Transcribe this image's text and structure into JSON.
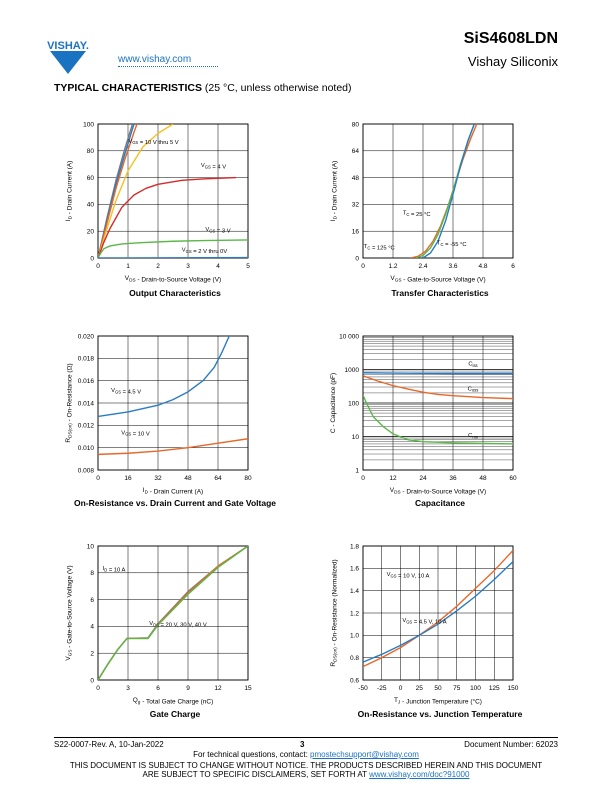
{
  "header": {
    "brand": "VISHAY.",
    "url": "www.vishay.com",
    "part_number": "SiS4608LDN",
    "company": "Vishay Siliconix",
    "section_title": "TYPICAL CHARACTERISTICS",
    "section_note": "(25 °C, unless otherwise noted)"
  },
  "footer": {
    "doc_rev": "S22-0007-Rev. A, 10-Jan-2022",
    "page": "3",
    "doc_number": "Document Number: 62023",
    "tech_q": "For technical questions, contact: ",
    "tech_email": "pmostechsupport@vishay.com",
    "disclaimer1": "THIS DOCUMENT IS SUBJECT TO CHANGE WITHOUT NOTICE. THE PRODUCTS DESCRIBED HEREIN AND THIS DOCUMENT",
    "disclaimer2": "ARE SUBJECT TO SPECIFIC DISCLAIMERS, SET FORTH AT ",
    "disclaimer_link": "www.vishay.com/doc?91000"
  },
  "colors": {
    "blue": "#2a7bc4",
    "orange": "#e8682a",
    "red": "#d42a2a",
    "green": "#5ab848",
    "gray": "#7a7a7a",
    "yellow": "#f5c020",
    "brand": "#1a73c0"
  },
  "chart_data": [
    {
      "id": "output",
      "type": "line",
      "title": "Output Characteristics",
      "xlabel": "V_DS - Drain-to-Source Voltage (V)",
      "ylabel": "I_D - Drain Current (A)",
      "xlim": [
        0,
        5
      ],
      "ylim": [
        0,
        100
      ],
      "xticks": [
        0,
        1,
        2,
        3,
        4,
        5
      ],
      "yticks": [
        0,
        20,
        40,
        60,
        80,
        100
      ],
      "grid": true,
      "series": [
        {
          "color": "gray",
          "points": [
            [
              0,
              0
            ],
            [
              0.3,
              30
            ],
            [
              0.6,
              58
            ],
            [
              0.9,
              82
            ],
            [
              1.15,
              100
            ]
          ]
        },
        {
          "color": "blue",
          "points": [
            [
              0,
              0
            ],
            [
              0.3,
              28
            ],
            [
              0.6,
              55
            ],
            [
              0.9,
              78
            ],
            [
              1.2,
              100
            ]
          ]
        },
        {
          "color": "orange",
          "points": [
            [
              0,
              0
            ],
            [
              0.3,
              26
            ],
            [
              0.6,
              52
            ],
            [
              0.9,
              74
            ],
            [
              1.25,
              97
            ],
            [
              1.3,
              100
            ]
          ]
        },
        {
          "color": "yellow",
          "points": [
            [
              0,
              0
            ],
            [
              0.3,
              22
            ],
            [
              0.6,
              43
            ],
            [
              1.0,
              65
            ],
            [
              1.5,
              83
            ],
            [
              2.0,
              93
            ],
            [
              2.5,
              100
            ]
          ]
        },
        {
          "color": "red",
          "points": [
            [
              0,
              0
            ],
            [
              0.2,
              12
            ],
            [
              0.4,
              22
            ],
            [
              0.8,
              38
            ],
            [
              1.2,
              47
            ],
            [
              1.6,
              52
            ],
            [
              2.0,
              55
            ],
            [
              2.8,
              58
            ],
            [
              3.5,
              59
            ],
            [
              4.6,
              60
            ]
          ]
        },
        {
          "color": "green",
          "points": [
            [
              0,
              0
            ],
            [
              0.1,
              4
            ],
            [
              0.2,
              7
            ],
            [
              0.4,
              9
            ],
            [
              0.8,
              10.5
            ],
            [
              1.5,
              11.5
            ],
            [
              2.5,
              12.5
            ],
            [
              3.5,
              13
            ],
            [
              5,
              13.5
            ]
          ]
        },
        {
          "color": "blue",
          "points": [
            [
              0,
              0
            ],
            [
              5,
              0.3
            ]
          ]
        }
      ],
      "annotations": [
        {
          "text": "V_GS = 10 V thru 5 V",
          "x": 1.85,
          "y": 86
        },
        {
          "text": "V_GS = 4 V",
          "x": 3.85,
          "y": 68
        },
        {
          "text": "V_GS = 3 V",
          "x": 4.0,
          "y": 20
        },
        {
          "text": "V_GS = 2 V thru 0V",
          "x": 3.55,
          "y": 5
        }
      ]
    },
    {
      "id": "transfer",
      "type": "line",
      "title": "Transfer Characteristics",
      "xlabel": "V_GS - Gate-to-Source Voltage (V)",
      "ylabel": "I_D - Drain Current (A)",
      "xlim": [
        0,
        6
      ],
      "ylim": [
        0,
        80
      ],
      "xticks": [
        0,
        1.2,
        2.4,
        3.6,
        4.8,
        6
      ],
      "yticks": [
        0,
        16,
        32,
        48,
        64,
        80
      ],
      "grid": true,
      "series": [
        {
          "color": "orange",
          "points": [
            [
              1.9,
              0
            ],
            [
              2.2,
              1
            ],
            [
              2.5,
              4
            ],
            [
              2.8,
              10
            ],
            [
              3.1,
              19
            ],
            [
              3.4,
              31
            ],
            [
              3.7,
              45
            ],
            [
              4.0,
              59
            ],
            [
              4.3,
              71
            ],
            [
              4.55,
              80
            ]
          ]
        },
        {
          "color": "green",
          "points": [
            [
              2.1,
              0
            ],
            [
              2.4,
              1.5
            ],
            [
              2.7,
              6
            ],
            [
              3.0,
              14
            ],
            [
              3.3,
              26
            ],
            [
              3.6,
              40
            ],
            [
              3.9,
              56
            ],
            [
              4.2,
              70
            ],
            [
              4.45,
              80
            ]
          ]
        },
        {
          "color": "blue",
          "points": [
            [
              2.4,
              0
            ],
            [
              2.7,
              3
            ],
            [
              3.0,
              10
            ],
            [
              3.3,
              22
            ],
            [
              3.6,
              38
            ],
            [
              3.9,
              55
            ],
            [
              4.2,
              70
            ],
            [
              4.45,
              80
            ]
          ]
        }
      ],
      "annotations": [
        {
          "text": "T_C = 25 °C",
          "x": 2.15,
          "y": 26
        },
        {
          "text": "T_C = 125 °C",
          "x": 0.65,
          "y": 6
        },
        {
          "text": "T_C = -55 °C",
          "x": 3.55,
          "y": 8
        }
      ]
    },
    {
      "id": "rdson",
      "type": "line",
      "title": "On-Resistance vs. Drain Current and Gate Voltage",
      "xlabel": "I_D - Drain Current (A)",
      "ylabel": "R_DS(on) - On-Resistance (Ω)",
      "xlim": [
        0,
        80
      ],
      "ylim": [
        0.008,
        0.02
      ],
      "xticks": [
        0,
        16,
        32,
        48,
        64,
        80
      ],
      "yticks": [
        0.008,
        0.01,
        0.012,
        0.014,
        0.016,
        0.018,
        0.02
      ],
      "ytick_labels": [
        "0.008",
        "0.010",
        "0.012",
        "0.014",
        "0.016",
        "0.018",
        "0.020"
      ],
      "grid": true,
      "series": [
        {
          "color": "blue",
          "points": [
            [
              0,
              0.0128
            ],
            [
              8,
              0.013
            ],
            [
              16,
              0.0132
            ],
            [
              24,
              0.0135
            ],
            [
              32,
              0.0138
            ],
            [
              40,
              0.0143
            ],
            [
              48,
              0.015
            ],
            [
              56,
              0.016
            ],
            [
              62,
              0.0172
            ],
            [
              66,
              0.0185
            ],
            [
              70,
              0.02
            ],
            [
              71,
              0.0203
            ]
          ]
        },
        {
          "color": "orange",
          "points": [
            [
              0,
              0.0094
            ],
            [
              16,
              0.0095
            ],
            [
              32,
              0.0097
            ],
            [
              48,
              0.01
            ],
            [
              64,
              0.0104
            ],
            [
              80,
              0.0108
            ]
          ]
        }
      ],
      "annotations": [
        {
          "text": "V_GS = 4.5 V",
          "x": 15,
          "y": 0.015
        },
        {
          "text": "V_GS = 10 V",
          "x": 20,
          "y": 0.0112
        }
      ]
    },
    {
      "id": "capacitance",
      "type": "line",
      "title": "Capacitance",
      "xlabel": "V_DS - Drain-to-Source Voltage (V)",
      "ylabel": "C - Capacitance (pF)",
      "xlim": [
        0,
        60
      ],
      "ylim": [
        1,
        10000
      ],
      "yscale": "log",
      "xticks": [
        0,
        12,
        24,
        36,
        48,
        60
      ],
      "yticks": [
        1,
        10,
        100,
        1000,
        10000
      ],
      "ytick_labels": [
        "1",
        "10",
        "100",
        "1000",
        "10 000"
      ],
      "grid": true,
      "series": [
        {
          "name": "C_iss",
          "color": "blue",
          "points": [
            [
              0,
              800
            ],
            [
              12,
              780
            ],
            [
              24,
              770
            ],
            [
              36,
              760
            ],
            [
              48,
              760
            ],
            [
              60,
              760
            ]
          ]
        },
        {
          "name": "C_oss",
          "color": "orange",
          "points": [
            [
              0,
              650
            ],
            [
              6,
              450
            ],
            [
              12,
              330
            ],
            [
              18,
              260
            ],
            [
              24,
              210
            ],
            [
              30,
              180
            ],
            [
              36,
              165
            ],
            [
              48,
              145
            ],
            [
              60,
              135
            ]
          ]
        },
        {
          "name": "C_rss",
          "color": "green",
          "points": [
            [
              0,
              170
            ],
            [
              2,
              80
            ],
            [
              4,
              40
            ],
            [
              8,
              20
            ],
            [
              12,
              12
            ],
            [
              18,
              8
            ],
            [
              24,
              7
            ],
            [
              36,
              6.5
            ],
            [
              60,
              6
            ]
          ]
        }
      ],
      "annotations": [
        {
          "text": "C_iss",
          "x": 44,
          "y": 1300
        },
        {
          "text": "C_oss",
          "x": 44,
          "y": 240
        },
        {
          "text": "C_rss",
          "x": 44,
          "y": 9.5
        }
      ]
    },
    {
      "id": "gatecharge",
      "type": "line",
      "title": "Gate Charge",
      "xlabel": "Q_g - Total Gate Charge (nC)",
      "ylabel": "V_GS - Gate-to-Source Voltage (V)",
      "xlim": [
        0,
        15
      ],
      "ylim": [
        0,
        10
      ],
      "xticks": [
        0,
        3,
        6,
        9,
        12,
        15
      ],
      "yticks": [
        0,
        2,
        4,
        6,
        8,
        10
      ],
      "grid": true,
      "series": [
        {
          "color": "gray",
          "points": [
            [
              0,
              0
            ],
            [
              1,
              1.2
            ],
            [
              2,
              2.3
            ],
            [
              2.9,
              3.1
            ],
            [
              5,
              3.15
            ],
            [
              6,
              4.2
            ],
            [
              9,
              6.6
            ],
            [
              12,
              8.5
            ],
            [
              15,
              10
            ]
          ]
        },
        {
          "color": "orange",
          "points": [
            [
              0,
              0
            ],
            [
              1,
              1.2
            ],
            [
              2,
              2.3
            ],
            [
              2.9,
              3.1
            ],
            [
              5,
              3.1
            ],
            [
              6,
              4.15
            ],
            [
              9,
              6.5
            ],
            [
              12,
              8.5
            ],
            [
              15,
              10
            ]
          ]
        },
        {
          "color": "green",
          "points": [
            [
              0,
              0
            ],
            [
              1,
              1.2
            ],
            [
              2,
              2.3
            ],
            [
              2.9,
              3.1
            ],
            [
              5,
              3.1
            ],
            [
              6,
              4.1
            ],
            [
              9,
              6.4
            ],
            [
              12,
              8.4
            ],
            [
              15,
              10
            ]
          ]
        }
      ],
      "annotations": [
        {
          "text": "I_D = 10 A",
          "x": 1.6,
          "y": 8.2
        },
        {
          "text": "V_DS = 20 V, 30 V, 40 V",
          "x": 8.0,
          "y": 4.1
        }
      ]
    },
    {
      "id": "rdson_temp",
      "type": "line",
      "title": "On-Resistance vs. Junction Temperature",
      "xlabel": "T_J - Junction Temperature (°C)",
      "ylabel": "R_DS(on) - On-Resistance (Normalized)",
      "xlim": [
        -50,
        150
      ],
      "ylim": [
        0.6,
        1.8
      ],
      "xticks": [
        -50,
        -25,
        0,
        25,
        50,
        75,
        100,
        125,
        150
      ],
      "yticks": [
        0.6,
        0.8,
        1.0,
        1.2,
        1.4,
        1.6,
        1.8
      ],
      "ytick_labels": [
        "0.6",
        "0.8",
        "1.0",
        "1.2",
        "1.4",
        "1.6",
        "1.8"
      ],
      "grid": true,
      "series": [
        {
          "color": "orange",
          "points": [
            [
              -50,
              0.72
            ],
            [
              -25,
              0.8
            ],
            [
              0,
              0.89
            ],
            [
              25,
              1.0
            ],
            [
              50,
              1.12
            ],
            [
              75,
              1.26
            ],
            [
              100,
              1.42
            ],
            [
              125,
              1.58
            ],
            [
              150,
              1.76
            ]
          ]
        },
        {
          "color": "blue",
          "points": [
            [
              -50,
              0.76
            ],
            [
              -25,
              0.83
            ],
            [
              0,
              0.91
            ],
            [
              25,
              1.0
            ],
            [
              50,
              1.1
            ],
            [
              75,
              1.22
            ],
            [
              100,
              1.35
            ],
            [
              125,
              1.5
            ],
            [
              150,
              1.66
            ]
          ]
        }
      ],
      "annotations": [
        {
          "text": "V_GS = 10 V, 10 A",
          "x": 10,
          "y": 1.53
        },
        {
          "text": "V_GS = 4.5 V, 10 A",
          "x": 32,
          "y": 1.12
        }
      ]
    }
  ]
}
